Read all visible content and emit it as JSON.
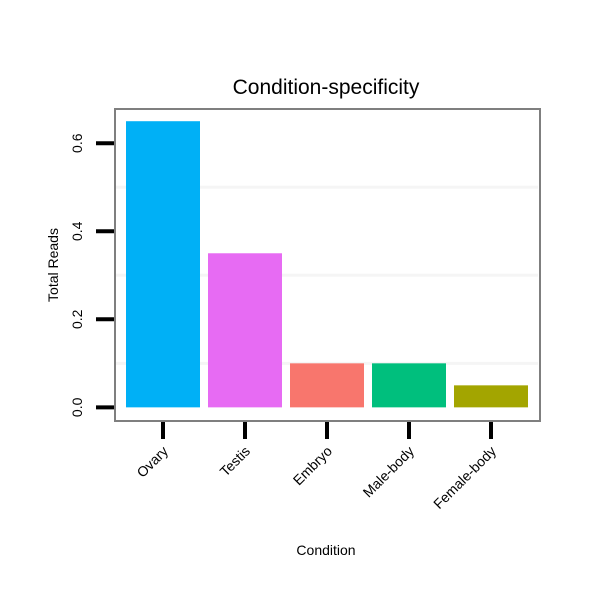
{
  "chart_data": {
    "type": "bar",
    "title": "Condition-specificity",
    "xlabel": "Condition",
    "ylabel": "Total Reads",
    "categories": [
      "Ovary",
      "Testis",
      "Embryo",
      "Male-body",
      "Female-body"
    ],
    "values": [
      0.65,
      0.35,
      0.1,
      0.1,
      0.05
    ],
    "colors": [
      "#00B0F6",
      "#E76BF3",
      "#F8766D",
      "#00BF7D",
      "#A3A500"
    ],
    "yticks": [
      0.0,
      0.2,
      0.4,
      0.6
    ],
    "ytick_labels": [
      "0.0",
      "0.2",
      "0.4",
      "0.6"
    ],
    "ylim": [
      -0.031,
      0.68
    ],
    "grid": true,
    "legend": "none"
  }
}
